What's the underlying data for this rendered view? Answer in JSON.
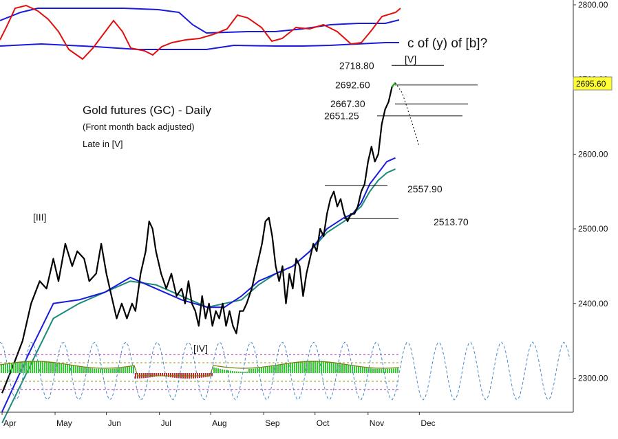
{
  "chart_data": {
    "type": "line",
    "title": "Gold futures (GC) - Daily",
    "subtitle": "(Front month back adjusted)",
    "note": "Late in [V]",
    "y_ticks": [
      "2800.00",
      "2700.00",
      "2600.00",
      "2500.00",
      "2400.00",
      "2300.00"
    ],
    "x_ticks": [
      "Apr",
      "May",
      "Jun",
      "Jul",
      "Aug",
      "Sep",
      "Oct",
      "Nov",
      "Dec"
    ],
    "last_price": "2695.60",
    "wave_labels": [
      "[III]",
      "[IV]",
      "[V]"
    ],
    "projection_label": "c of (y) of [b]?",
    "levels": [
      {
        "value": 2718.8,
        "label": "2718.80"
      },
      {
        "value": 2692.6,
        "label": "2692.60"
      },
      {
        "value": 2667.3,
        "label": "2667.30"
      },
      {
        "value": 2651.25,
        "label": "2651.25"
      },
      {
        "value": 2557.9,
        "label": "2557.90"
      },
      {
        "value": 2513.7,
        "label": "2513.70"
      }
    ],
    "series": [
      {
        "color": "#000000",
        "points": [
          [
            0,
            2280
          ],
          [
            7,
            2320
          ],
          [
            12,
            2350
          ],
          [
            17,
            2400
          ],
          [
            22,
            2430
          ],
          [
            26,
            2420
          ],
          [
            30,
            2460
          ],
          [
            33,
            2430
          ],
          [
            37,
            2480
          ],
          [
            41,
            2450
          ],
          [
            44,
            2470
          ],
          [
            48,
            2460
          ],
          [
            51,
            2430
          ],
          [
            55,
            2440
          ],
          [
            58,
            2480
          ],
          [
            61,
            2440
          ],
          [
            64,
            2410
          ],
          [
            67,
            2380
          ],
          [
            70,
            2400
          ],
          [
            73,
            2380
          ],
          [
            76,
            2400
          ],
          [
            78,
            2390
          ],
          [
            81,
            2440
          ],
          [
            84,
            2470
          ],
          [
            86,
            2510
          ],
          [
            88,
            2500
          ],
          [
            90,
            2470
          ],
          [
            93,
            2440
          ],
          [
            96,
            2420
          ],
          [
            99,
            2440
          ],
          [
            102,
            2410
          ],
          [
            105,
            2420
          ],
          [
            107,
            2400
          ],
          [
            109,
            2430
          ],
          [
            111,
            2400
          ],
          [
            113,
            2390
          ],
          [
            115,
            2370
          ],
          [
            117,
            2410
          ],
          [
            119,
            2380
          ],
          [
            121,
            2400
          ],
          [
            123,
            2370
          ],
          [
            125,
            2390
          ],
          [
            127,
            2380
          ],
          [
            129,
            2400
          ],
          [
            131,
            2370
          ],
          [
            133,
            2390
          ],
          [
            135,
            2370
          ],
          [
            137,
            2360
          ],
          [
            139,
            2390
          ],
          [
            141,
            2390
          ],
          [
            143,
            2400
          ],
          [
            146,
            2420
          ],
          [
            148,
            2440
          ],
          [
            150,
            2460
          ],
          [
            152,
            2480
          ],
          [
            154,
            2510
          ],
          [
            156,
            2515
          ],
          [
            158,
            2490
          ],
          [
            160,
            2450
          ],
          [
            162,
            2430
          ],
          [
            164,
            2450
          ],
          [
            166,
            2400
          ],
          [
            168,
            2440
          ],
          [
            170,
            2420
          ],
          [
            172,
            2460
          ],
          [
            174,
            2450
          ],
          [
            176,
            2410
          ],
          [
            178,
            2440
          ],
          [
            180,
            2460
          ],
          [
            182,
            2480
          ],
          [
            184,
            2470
          ],
          [
            186,
            2500
          ],
          [
            188,
            2490
          ],
          [
            190,
            2520
          ],
          [
            192,
            2540
          ],
          [
            194,
            2550
          ],
          [
            196,
            2530
          ],
          [
            198,
            2540
          ],
          [
            200,
            2520
          ],
          [
            202,
            2510
          ],
          [
            204,
            2520
          ],
          [
            206,
            2520
          ],
          [
            208,
            2530
          ],
          [
            210,
            2550
          ],
          [
            212,
            2560
          ],
          [
            214,
            2590
          ],
          [
            216,
            2610
          ],
          [
            218,
            2590
          ],
          [
            220,
            2600
          ],
          [
            222,
            2640
          ],
          [
            224,
            2660
          ],
          [
            226,
            2670
          ],
          [
            228,
            2690
          ],
          [
            230,
            2695.6
          ]
        ]
      },
      {
        "color": "#1a1adc",
        "points": [
          [
            0,
            2255
          ],
          [
            15,
            2330
          ],
          [
            30,
            2400
          ],
          [
            45,
            2405
          ],
          [
            60,
            2415
          ],
          [
            75,
            2435
          ],
          [
            90,
            2420
          ],
          [
            105,
            2405
          ],
          [
            120,
            2395
          ],
          [
            130,
            2395
          ],
          [
            140,
            2410
          ],
          [
            150,
            2430
          ],
          [
            160,
            2440
          ],
          [
            170,
            2450
          ],
          [
            180,
            2470
          ],
          [
            190,
            2500
          ],
          [
            200,
            2515
          ],
          [
            205,
            2520
          ],
          [
            210,
            2535
          ],
          [
            215,
            2560
          ],
          [
            220,
            2575
          ],
          [
            225,
            2590
          ],
          [
            230,
            2595
          ]
        ]
      },
      {
        "color": "#1a8a7a",
        "points": [
          [
            0,
            2240
          ],
          [
            15,
            2310
          ],
          [
            30,
            2380
          ],
          [
            45,
            2400
          ],
          [
            60,
            2415
          ],
          [
            75,
            2430
          ],
          [
            90,
            2425
          ],
          [
            105,
            2410
          ],
          [
            120,
            2395
          ],
          [
            130,
            2400
          ],
          [
            140,
            2405
          ],
          [
            150,
            2425
          ],
          [
            160,
            2440
          ],
          [
            170,
            2450
          ],
          [
            180,
            2470
          ],
          [
            190,
            2495
          ],
          [
            200,
            2510
          ],
          [
            205,
            2520
          ],
          [
            210,
            2530
          ],
          [
            215,
            2550
          ],
          [
            220,
            2565
          ],
          [
            225,
            2575
          ],
          [
            230,
            2580
          ]
        ]
      }
    ],
    "projection": [
      [
        230,
        2695.6
      ],
      [
        234,
        2682
      ],
      [
        240,
        2640
      ],
      [
        244,
        2610
      ]
    ],
    "ylim": [
      2255,
      2815
    ],
    "x_month_starts": [
      0,
      31,
      61,
      92,
      122,
      153,
      183,
      214,
      244
    ],
    "grid": false
  }
}
